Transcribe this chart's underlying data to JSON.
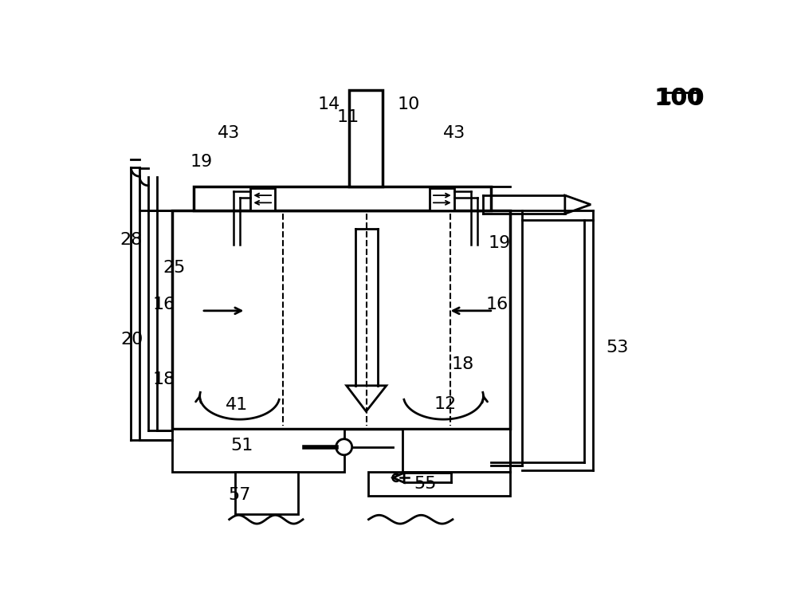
{
  "bg": "#ffffff",
  "lc": "#000000",
  "lw": 2.0,
  "fs": 16,
  "labels": [
    [
      "100",
      942,
      42,
      20,
      true
    ],
    [
      "10",
      500,
      52,
      16,
      false
    ],
    [
      "11",
      402,
      72,
      16,
      false
    ],
    [
      "14",
      370,
      52,
      16,
      false
    ],
    [
      "43",
      207,
      98,
      16,
      false
    ],
    [
      "43",
      575,
      98,
      16,
      false
    ],
    [
      "19",
      162,
      145,
      16,
      false
    ],
    [
      "19",
      648,
      278,
      16,
      false
    ],
    [
      "28",
      48,
      272,
      16,
      false
    ],
    [
      "25",
      118,
      318,
      16,
      false
    ],
    [
      "16",
      102,
      378,
      16,
      false
    ],
    [
      "16",
      645,
      378,
      16,
      false
    ],
    [
      "20",
      50,
      435,
      16,
      false
    ],
    [
      "18",
      102,
      500,
      16,
      false
    ],
    [
      "18",
      588,
      475,
      16,
      false
    ],
    [
      "41",
      220,
      542,
      16,
      false
    ],
    [
      "12",
      560,
      540,
      16,
      false
    ],
    [
      "51",
      228,
      608,
      16,
      false
    ],
    [
      "57",
      225,
      688,
      16,
      false
    ],
    [
      "55",
      527,
      670,
      16,
      false
    ],
    [
      "53",
      840,
      448,
      16,
      false
    ]
  ]
}
